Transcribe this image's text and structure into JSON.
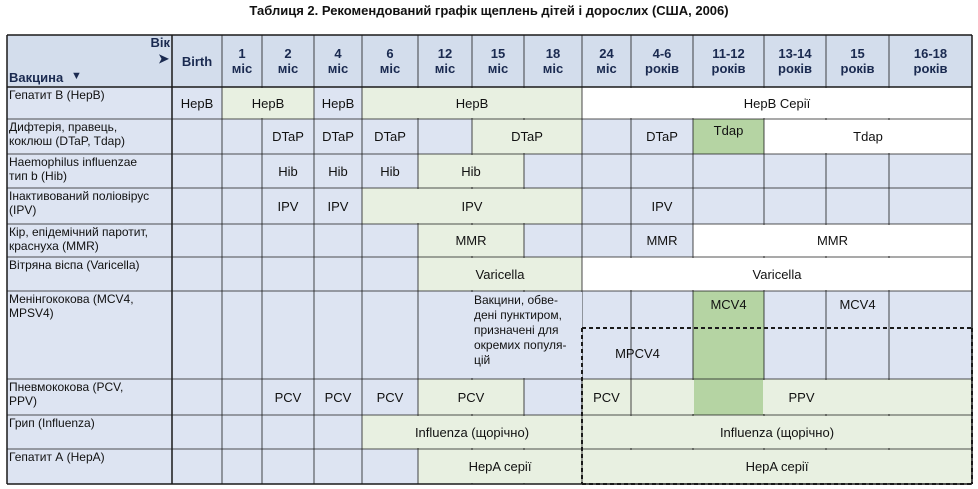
{
  "title": "Таблиця 2. Рекомендований графік щеплень дітей і дорослих (США, 2006)",
  "corner": {
    "top": "Вік",
    "bottom": "Вакцина"
  },
  "ages": [
    [
      "Birth"
    ],
    [
      "1",
      "міс"
    ],
    [
      "2",
      "міс"
    ],
    [
      "4",
      "міс"
    ],
    [
      "6",
      "міс"
    ],
    [
      "12",
      "міс"
    ],
    [
      "15",
      "міс"
    ],
    [
      "18",
      "міс"
    ],
    [
      "24",
      "міс"
    ],
    [
      "4-6",
      "років"
    ],
    [
      "11-12",
      "років"
    ],
    [
      "13-14",
      "років"
    ],
    [
      "15",
      "років"
    ],
    [
      "16-18",
      "років"
    ]
  ],
  "vaccines": [
    [
      "Гепатит В (НерВ)"
    ],
    [
      "Дифтерія, правець,",
      "коклюш (DTaP, Tdap)"
    ],
    [
      "Haemophilus influenzae",
      "тип b (Hib)"
    ],
    [
      "Інактивований поліовірус",
      "(IPV)"
    ],
    [
      "Кір, епідемічний паротит,",
      "краснуха (MMR)"
    ],
    [
      "Вітряна віспа (Varicella)"
    ],
    [
      "Менінгококова (MCV4,",
      "MPSV4)"
    ],
    [
      "Пневмококова (PCV,",
      "PPV)"
    ],
    [
      "Грип (Influenza)"
    ],
    [
      "Гепатит А (НерА)"
    ]
  ],
  "entries": [
    {
      "row": 0,
      "c0": 1,
      "c1": 1,
      "text": "HepB",
      "kind": "plain"
    },
    {
      "row": 0,
      "c0": 2,
      "c1": 3,
      "text": "HepB",
      "kind": "range"
    },
    {
      "row": 0,
      "c0": 4,
      "c1": 4,
      "text": "HepB",
      "kind": "plain"
    },
    {
      "row": 0,
      "c0": 5,
      "c1": 8,
      "text": "HepB",
      "kind": "range"
    },
    {
      "row": 0,
      "c0": 9,
      "c1": 14,
      "text": "HepB Серії",
      "kind": "white"
    },
    {
      "row": 1,
      "c0": 3,
      "c1": 3,
      "text": "DTaP",
      "kind": "plain"
    },
    {
      "row": 1,
      "c0": 4,
      "c1": 4,
      "text": "DTaP",
      "kind": "plain"
    },
    {
      "row": 1,
      "c0": 5,
      "c1": 5,
      "text": "DTaP",
      "kind": "plain"
    },
    {
      "row": 1,
      "c0": 7,
      "c1": 8,
      "text": "DTaP",
      "kind": "range"
    },
    {
      "row": 1,
      "c0": 10,
      "c1": 10,
      "text": "DTaP",
      "kind": "plain"
    },
    {
      "row": 1,
      "c0": 11,
      "c1": 11,
      "text": "Tdap",
      "kind": "green"
    },
    {
      "row": 1,
      "c0": 12,
      "c1": 14,
      "text": "Tdap",
      "kind": "white"
    },
    {
      "row": 2,
      "c0": 3,
      "c1": 3,
      "text": "Hib",
      "kind": "plain"
    },
    {
      "row": 2,
      "c0": 4,
      "c1": 4,
      "text": "Hib",
      "kind": "plain"
    },
    {
      "row": 2,
      "c0": 5,
      "c1": 5,
      "text": "Hib",
      "kind": "plain"
    },
    {
      "row": 2,
      "c0": 6,
      "c1": 7,
      "text": "Hib",
      "kind": "range"
    },
    {
      "row": 3,
      "c0": 3,
      "c1": 3,
      "text": "IPV",
      "kind": "plain"
    },
    {
      "row": 3,
      "c0": 4,
      "c1": 4,
      "text": "IPV",
      "kind": "plain"
    },
    {
      "row": 3,
      "c0": 5,
      "c1": 8,
      "text": "IPV",
      "kind": "range"
    },
    {
      "row": 3,
      "c0": 10,
      "c1": 10,
      "text": "IPV",
      "kind": "plain"
    },
    {
      "row": 4,
      "c0": 6,
      "c1": 7,
      "text": "MMR",
      "kind": "range"
    },
    {
      "row": 4,
      "c0": 10,
      "c1": 10,
      "text": "MMR",
      "kind": "plain"
    },
    {
      "row": 4,
      "c0": 11,
      "c1": 14,
      "text": "MMR",
      "kind": "white"
    },
    {
      "row": 5,
      "c0": 6,
      "c1": 8,
      "text": "Varicella",
      "kind": "range"
    },
    {
      "row": 5,
      "c0": 9,
      "c1": 14,
      "text": "Varicella",
      "kind": "white"
    },
    {
      "row": 6,
      "c0": 11,
      "c1": 11,
      "text": "MCV4",
      "kind": "green"
    },
    {
      "row": 6,
      "c0": 13,
      "c1": 13,
      "text": "MCV4",
      "kind": "plain"
    },
    {
      "row": 7,
      "c0": 3,
      "c1": 3,
      "text": "PCV",
      "kind": "plain"
    },
    {
      "row": 7,
      "c0": 4,
      "c1": 4,
      "text": "PCV",
      "kind": "plain"
    },
    {
      "row": 7,
      "c0": 5,
      "c1": 5,
      "text": "PCV",
      "kind": "plain"
    },
    {
      "row": 7,
      "c0": 6,
      "c1": 7,
      "text": "PCV",
      "kind": "range"
    },
    {
      "row": 7,
      "c0": 9,
      "c1": 9,
      "text": "PCV",
      "kind": "white"
    },
    {
      "row": 7,
      "c0": 10,
      "c1": 14,
      "text": "PPV",
      "kind": "range"
    },
    {
      "row": 8,
      "c0": 5,
      "c1": 8,
      "text": "Influenza (щорічно)",
      "kind": "range"
    },
    {
      "row": 8,
      "c0": 9,
      "c1": 14,
      "text": "Influenza (щорічно)",
      "kind": "range"
    },
    {
      "row": 9,
      "c0": 6,
      "c1": 8,
      "text": "HepA серії",
      "kind": "range"
    },
    {
      "row": 9,
      "c0": 9,
      "c1": 14,
      "text": "HepA серії",
      "kind": "range"
    }
  ],
  "mpcv4_label": "MPCV4",
  "note_lines": [
    "Вакцини, обве-",
    "дені пунктиром,",
    "призначені для",
    "окремих популя-",
    "цій"
  ],
  "colors": {
    "header_bg": "#d3ddec",
    "cell_bg": "#dde4f2",
    "range_bg": "#e8f0e1",
    "green": "#b5d4a3",
    "white": "#ffffff",
    "grid": "#1a1a1a"
  }
}
